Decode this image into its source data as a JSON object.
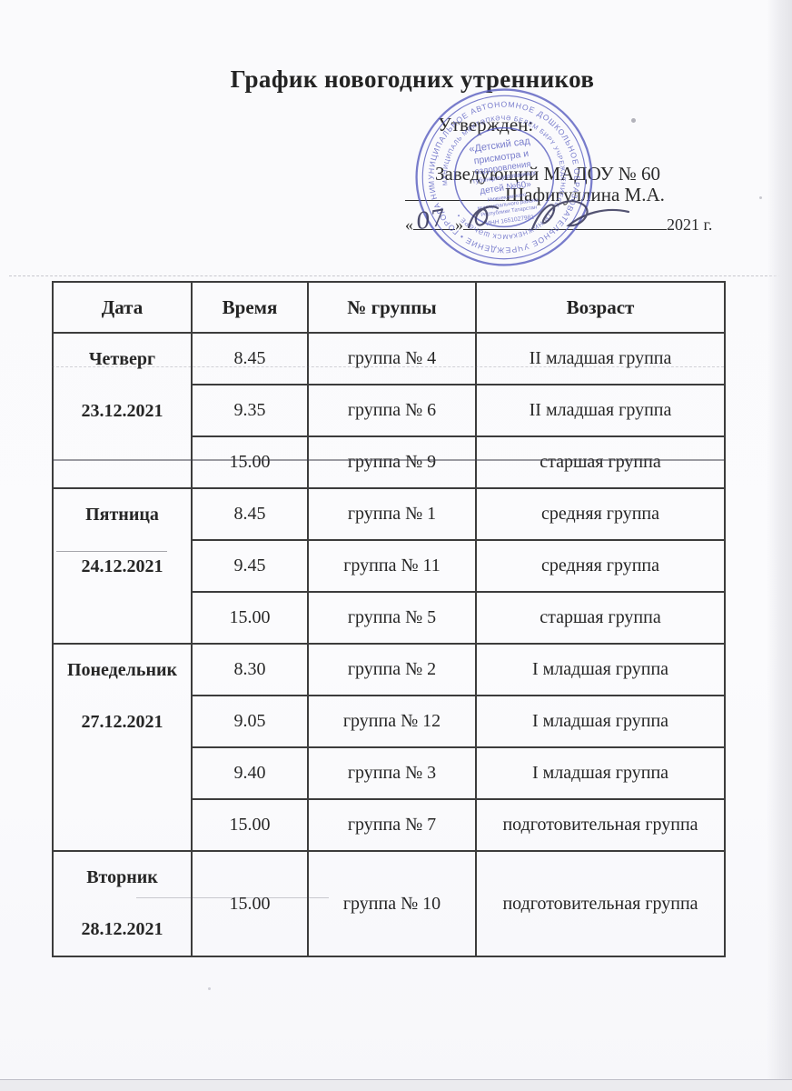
{
  "doc": {
    "title": "График новогодних утренников",
    "approval": {
      "approved_label": "Утвержден:",
      "position_line": "Заведующий МАДОУ № 60",
      "name": "Шафигуллина М.А.",
      "open_quote": "«",
      "close_quote": "»",
      "handwritten_day": "07",
      "year_label": "2021 г."
    },
    "stamp": {
      "ring_outer_text": "МУНИЦИПАЛЬНОЕ АВТОНОМНОЕ ДОШКОЛЬНОЕ ОБРАЗОВАТЕЛЬНОЕ УЧРЕЖДЕНИЕ • ГОРОДА НИЖНЕКАМСКА •",
      "ring_inner_text": "МУНИЦИПАЛЬ МӘКТӘПКӘЧӘ БЕЛЕМ БИРҮ УЧРЕЖДЕНИЕСЕ • ТР НИЖНЕКАМСК ШӘҺӘРЕ •",
      "center_line1": "«Детский сад",
      "center_line2": "присмотра и",
      "center_line3": "оздоровления",
      "center_line4": "тубинфицированных",
      "center_line5": "детей №60»",
      "center_line6": "Нижнекамского",
      "center_line7": "муниципального района",
      "center_line8": "Республики Татарстан",
      "center_line9": "ИНН 1651027981"
    }
  },
  "table": {
    "headers": [
      "Дата",
      "Время",
      "№ группы",
      "Возраст"
    ],
    "groups": [
      {
        "day": "Четверг",
        "date": "23.12.2021",
        "rows": [
          [
            "8.45",
            "группа № 4",
            "II младшая группа"
          ],
          [
            "9.35",
            "группа № 6",
            "II младшая группа"
          ],
          [
            "15.00",
            "группа № 9",
            "старшая группа"
          ]
        ]
      },
      {
        "day": "Пятница",
        "date": "24.12.2021",
        "rows": [
          [
            "8.45",
            "группа № 1",
            "средняя группа"
          ],
          [
            "9.45",
            "группа № 11",
            "средняя группа"
          ],
          [
            "15.00",
            "группа № 5",
            "старшая группа"
          ]
        ]
      },
      {
        "day": "Понедельник",
        "date": "27.12.2021",
        "rows": [
          [
            "8.30",
            "группа № 2",
            "I младшая группа"
          ],
          [
            "9.05",
            "группа № 12",
            "I младшая группа"
          ],
          [
            "9.40",
            "группа № 3",
            "I младшая группа"
          ],
          [
            "15.00",
            "группа № 7",
            "подготовительная группа"
          ]
        ]
      },
      {
        "day": "Вторник",
        "date": "28.12.2021",
        "rows": [
          [
            "15.00",
            "группа № 10",
            "подготовительная группа"
          ]
        ]
      }
    ]
  }
}
